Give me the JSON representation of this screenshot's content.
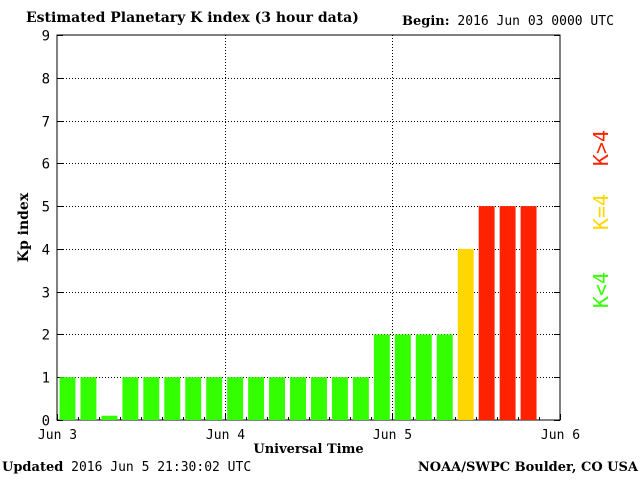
{
  "header": {
    "title": "Estimated Planetary K index (3 hour data)",
    "begin_label": "Begin:",
    "begin_value": "2016 Jun 03 0000 UTC"
  },
  "footer": {
    "updated_label": "Updated",
    "updated_value": "2016 Jun  5 21:30:02 UTC",
    "source": "NOAA/SWPC Boulder, CO USA"
  },
  "legend": {
    "low": "K<4",
    "mid": "K=4",
    "high": "K>4"
  },
  "colors": {
    "low": "#33ff00",
    "mid": "#ffd700",
    "high": "#ff2200"
  },
  "chart_data": {
    "type": "bar",
    "title": "Estimated Planetary K index (3 hour data)",
    "xlabel": "Universal Time",
    "ylabel": "Kp index",
    "ylim": [
      0,
      9
    ],
    "yticks": [
      "0",
      "1",
      "2",
      "3",
      "4",
      "5",
      "6",
      "7",
      "8",
      "9"
    ],
    "xticks": [
      "Jun 3",
      "Jun 4",
      "Jun 5",
      "Jun 6"
    ],
    "grid": true,
    "bars_per_day": 8,
    "values": [
      1,
      1,
      0.1,
      1,
      1,
      1,
      1,
      1,
      1,
      1,
      1,
      1,
      1,
      1,
      1,
      2,
      2,
      2,
      2,
      4,
      5,
      5,
      5
    ]
  }
}
